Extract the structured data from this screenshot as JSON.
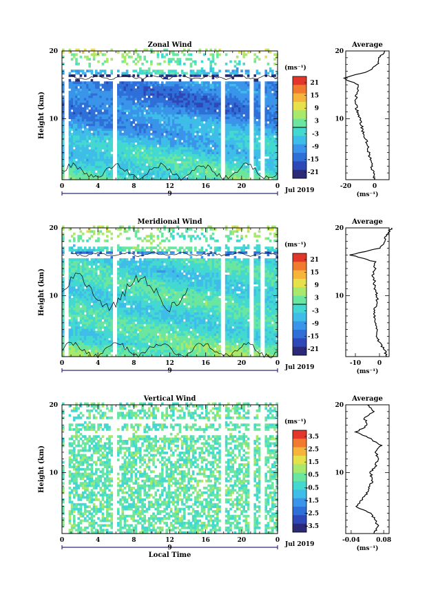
{
  "colors": {
    "zonal_palette": [
      "#2b2a78",
      "#2f48b8",
      "#2e6fd8",
      "#3a94ea",
      "#3ebde8",
      "#44d9d0",
      "#6ae6a0",
      "#a8e86a",
      "#e6e04a",
      "#f6b43a",
      "#f27a2e",
      "#e2362a"
    ],
    "vertical_palette": [
      "#2b2a78",
      "#2f48b8",
      "#2e6fd8",
      "#3a94ea",
      "#3ebde8",
      "#44d9d0",
      "#6ae6a0",
      "#a8e86a",
      "#e6e04a",
      "#f6b43a",
      "#f27a2e",
      "#e2362a"
    ]
  },
  "chart_data": [
    {
      "type": "heatmap",
      "title": "Zonal Wind",
      "xlabel": "",
      "ylabel": "Height (km)",
      "xlim": [
        0,
        24
      ],
      "ylim": [
        1,
        20
      ],
      "x_ticks": [
        "0",
        "4",
        "8",
        "12",
        "16",
        "20",
        "0"
      ],
      "y_ticks": [
        "20",
        "10"
      ],
      "date_labels": [
        "9"
      ],
      "month_label": "Jul 2019",
      "colorbar": {
        "unit": "(ms⁻¹)",
        "ticks": [
          "21",
          "15",
          "9",
          "3",
          "-3",
          "-9",
          "-15",
          "-21"
        ],
        "zero_line": true
      },
      "profile_heights": [
        1,
        2,
        3,
        4,
        5,
        6,
        7,
        8,
        9,
        10,
        11,
        12,
        13,
        14,
        15,
        16,
        17,
        18,
        19,
        20
      ],
      "profile_values": [
        0,
        -1,
        -2,
        -3,
        -4,
        -5,
        -6,
        -8,
        -9,
        -10,
        -12,
        -13,
        -13,
        -12,
        -11,
        -22,
        -4,
        2,
        3,
        7
      ],
      "missing_times": [
        0.3,
        5.8,
        17.8,
        21.0,
        22.2
      ]
    },
    {
      "type": "line",
      "title": "Average",
      "xlabel": "(ms⁻¹)",
      "ylabel": "",
      "xlim": [
        -20,
        10
      ],
      "ylim": [
        1,
        20
      ],
      "x_ticks": [
        "-20",
        "0"
      ],
      "y_ticks": [
        "20",
        "10"
      ],
      "series": [
        {
          "x": [
            0,
            -1,
            -2,
            -3,
            -4,
            -5,
            -6,
            -8,
            -9,
            -10,
            -12,
            -13,
            -13,
            -12,
            -11,
            -22,
            -4,
            2,
            3,
            7
          ],
          "y": [
            1,
            2,
            3,
            4,
            5,
            6,
            7,
            8,
            9,
            10,
            11,
            12,
            13,
            14,
            15,
            16,
            17,
            18,
            19,
            20
          ]
        }
      ]
    },
    {
      "type": "heatmap",
      "title": "Meridional Wind",
      "xlabel": "",
      "ylabel": "Height (km)",
      "xlim": [
        0,
        24
      ],
      "ylim": [
        1,
        20
      ],
      "x_ticks": [
        "0",
        "4",
        "8",
        "12",
        "16",
        "20",
        "0"
      ],
      "y_ticks": [
        "20",
        "10"
      ],
      "date_labels": [
        "9"
      ],
      "month_label": "Jul 2019",
      "colorbar": {
        "unit": "(ms⁻¹)",
        "ticks": [
          "21",
          "15",
          "9",
          "3",
          "-3",
          "-9",
          "-15",
          "-21"
        ],
        "zero_line": true
      },
      "profile_heights": [
        1,
        2,
        3,
        4,
        5,
        6,
        7,
        8,
        9,
        10,
        11,
        12,
        13,
        14,
        15,
        16,
        17,
        18,
        19,
        20
      ],
      "profile_values": [
        3,
        2,
        0,
        -1,
        -1,
        -2,
        -2,
        -2,
        -1,
        -1,
        -2,
        -2,
        -3,
        -2,
        -2,
        -12,
        0,
        2,
        3,
        5
      ],
      "missing_times": [
        0.3,
        5.8,
        17.8,
        21.0,
        22.2
      ]
    },
    {
      "type": "line",
      "title": "Average",
      "xlabel": "(ms⁻¹)",
      "ylabel": "",
      "xlim": [
        -14,
        4
      ],
      "ylim": [
        1,
        20
      ],
      "x_ticks": [
        "-10",
        "0"
      ],
      "y_ticks": [
        "20",
        "10"
      ],
      "series": [
        {
          "x": [
            3,
            2,
            0,
            -1,
            -1,
            -2,
            -2,
            -2,
            -1,
            -1,
            -2,
            -2,
            -3,
            -2,
            -2,
            -12,
            0,
            2,
            3,
            5
          ],
          "y": [
            1,
            2,
            3,
            4,
            5,
            6,
            7,
            8,
            9,
            10,
            11,
            12,
            13,
            14,
            15,
            16,
            17,
            18,
            19,
            20
          ]
        }
      ]
    },
    {
      "type": "heatmap",
      "title": "Vertical Wind",
      "xlabel": "Local Time",
      "ylabel": "Height (km)",
      "xlim": [
        0,
        24
      ],
      "ylim": [
        1,
        20
      ],
      "x_ticks": [
        "0",
        "4",
        "8",
        "12",
        "16",
        "20",
        "0"
      ],
      "y_ticks": [
        "20",
        "10"
      ],
      "date_labels": [
        "9"
      ],
      "month_label": "Jul 2019",
      "colorbar": {
        "unit": "(ms⁻¹)",
        "ticks": [
          "3.5",
          "2.5",
          "1.5",
          "0.5",
          "-0.5",
          "-1.5",
          "-2.5",
          "-3.5"
        ],
        "zero_line": false
      },
      "profile_heights": [
        1,
        2,
        3,
        4,
        5,
        6,
        7,
        8,
        9,
        10,
        11,
        12,
        13,
        14,
        15,
        16,
        17,
        18,
        19,
        20
      ],
      "profile_values": [
        0.04,
        0.06,
        0.05,
        0.03,
        -0.02,
        0.0,
        0.02,
        0.03,
        0.04,
        0.03,
        0.05,
        0.06,
        0.05,
        0.07,
        0.03,
        -0.02,
        0.02,
        0.01,
        0.04,
        0.02
      ],
      "missing_times": [
        0.3,
        5.8,
        17.8,
        21.0,
        22.2
      ]
    },
    {
      "type": "line",
      "title": "Average",
      "xlabel": "(ms⁻¹)",
      "ylabel": "",
      "xlim": [
        -0.06,
        0.1
      ],
      "ylim": [
        1,
        20
      ],
      "x_ticks": [
        "-0.04",
        "0.08"
      ],
      "y_ticks": [
        "20",
        "10"
      ],
      "series": [
        {
          "x": [
            0.04,
            0.06,
            0.05,
            0.03,
            -0.02,
            0.0,
            0.02,
            0.03,
            0.04,
            0.03,
            0.05,
            0.06,
            0.05,
            0.07,
            0.03,
            -0.02,
            0.02,
            0.01,
            0.04,
            0.02
          ],
          "y": [
            1,
            2,
            3,
            4,
            5,
            6,
            7,
            8,
            9,
            10,
            11,
            12,
            13,
            14,
            15,
            16,
            17,
            18,
            19,
            20
          ]
        }
      ]
    }
  ]
}
